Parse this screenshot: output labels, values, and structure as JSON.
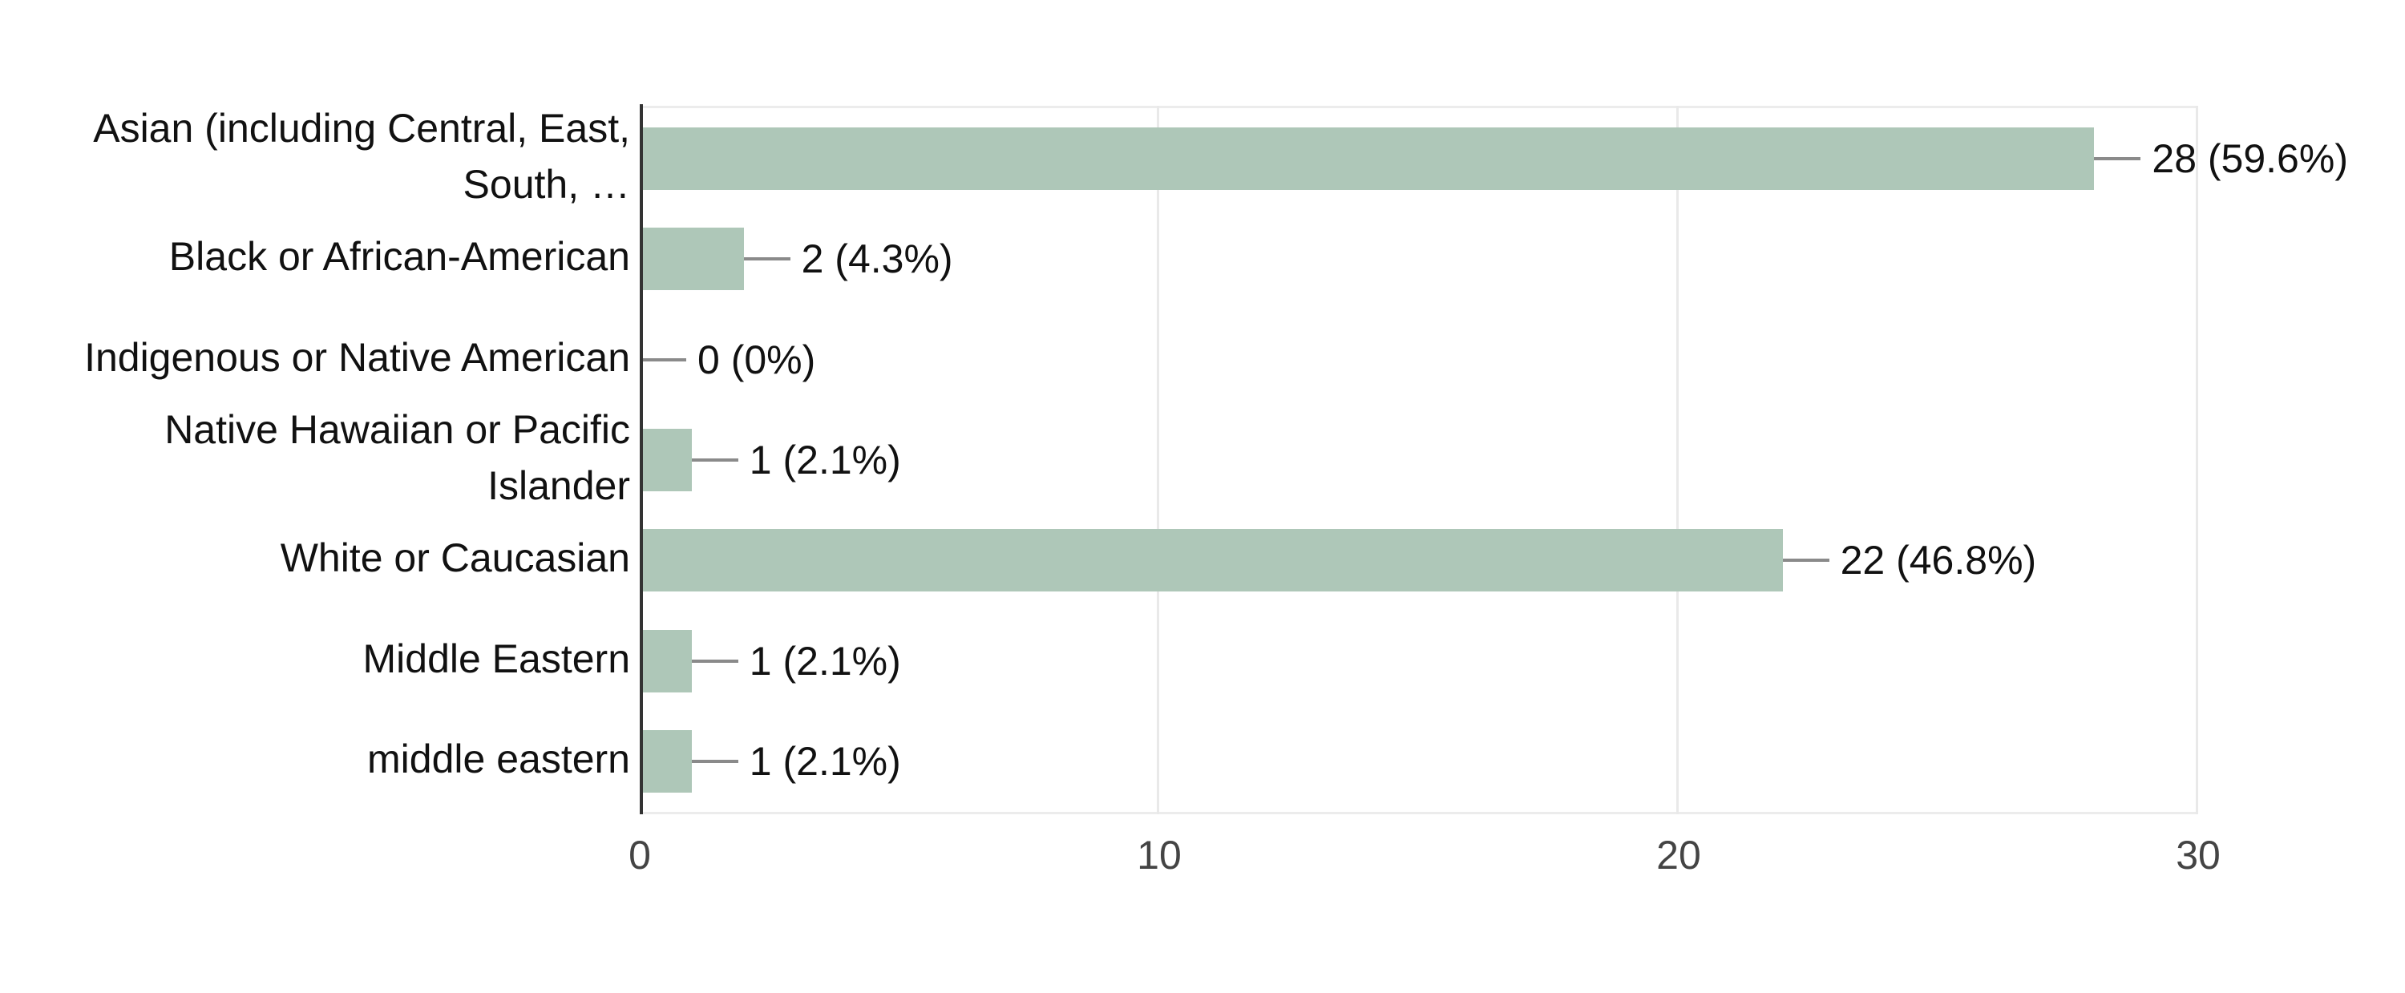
{
  "chart_data": {
    "type": "bar",
    "orientation": "horizontal",
    "title": "",
    "categories": [
      "Asian (including Central, East,\nSouth, …",
      "Black or African-American",
      "Indigenous or Native American",
      "Native Hawaiian or Pacific\nIslander",
      "White or Caucasian",
      "Middle Eastern",
      "middle eastern"
    ],
    "values": [
      28,
      2,
      0,
      1,
      22,
      1,
      1
    ],
    "value_labels": [
      "28 (59.6%)",
      "2 (4.3%)",
      "0 (0%)",
      "1 (2.1%)",
      "22 (46.8%)",
      "1 (2.1%)",
      "1 (2.1%)"
    ],
    "xlim": [
      0,
      30
    ],
    "xticks": [
      0,
      10,
      20,
      30
    ],
    "grid": true,
    "legend": "none",
    "colors": {
      "bar": "#aec7b8",
      "axis_line": "#333333",
      "gridline": "#e9e9e9",
      "plot_border": "#ececec",
      "connector": "#8a8a8a",
      "label_text": "#111111",
      "tick_text": "#444444",
      "background": "#ffffff"
    }
  }
}
